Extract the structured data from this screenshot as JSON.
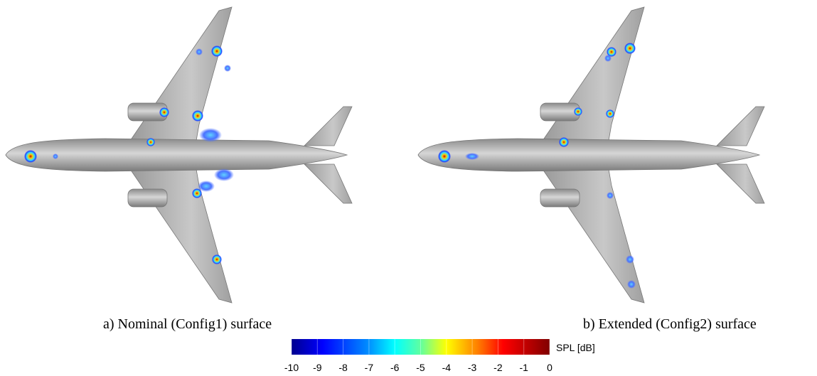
{
  "panels": [
    {
      "caption": "a) Nominal (Config1) surface"
    },
    {
      "caption": "b) Extended (Config2) surface"
    }
  ],
  "colorbar": {
    "label": "SPL [dB]",
    "lim": [
      -10,
      0
    ],
    "ticks": [
      -10,
      -9,
      -8,
      -7,
      -6,
      -5,
      -4,
      -3,
      -2,
      -1,
      0
    ]
  }
}
